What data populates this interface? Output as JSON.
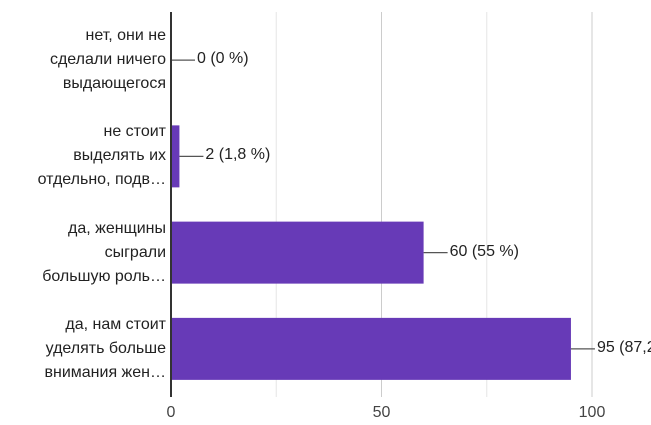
{
  "chart_data": {
    "type": "bar",
    "orientation": "horizontal",
    "categories": [
      "нет, они не\nсделали ничего\nвыдающегося",
      "не стоит\nвыделять их\nотдельно, подв…",
      "да, женщины\nсыграли\nбольшую роль…",
      "да, нам стоит\nуделять больше\nвнимания жен…"
    ],
    "values": [
      0,
      2,
      60,
      95
    ],
    "data_labels": [
      "0 (0 %)",
      "2 (1,8 %)",
      "60 (55 %)",
      "95 (87,2"
    ],
    "x_ticks": [
      "0",
      "50",
      "100"
    ],
    "xlim": [
      0,
      100
    ],
    "grid": true,
    "bar_color": "#673ab7",
    "title": "",
    "xlabel": "",
    "ylabel": ""
  }
}
